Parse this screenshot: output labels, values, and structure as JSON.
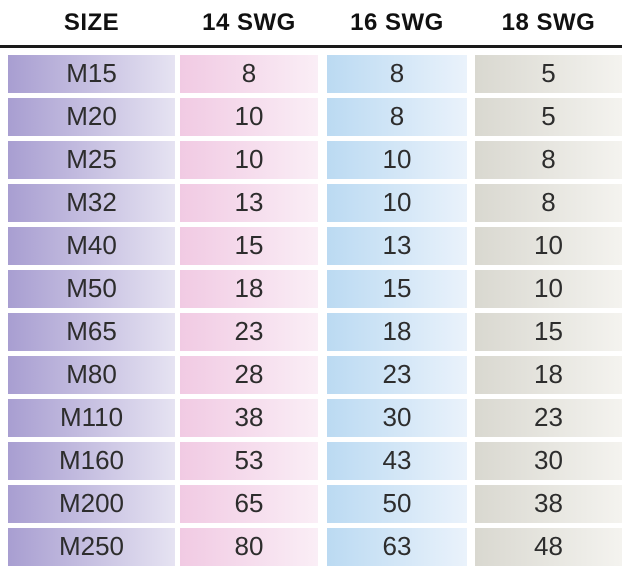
{
  "header": {
    "columns": [
      "SIZE",
      "14 SWG",
      "16 SWG",
      "18 SWG"
    ]
  },
  "rows": [
    {
      "size": "M15",
      "swg14": "8",
      "swg16": "8",
      "swg18": "5"
    },
    {
      "size": "M20",
      "swg14": "10",
      "swg16": "8",
      "swg18": "5"
    },
    {
      "size": "M25",
      "swg14": "10",
      "swg16": "10",
      "swg18": "8"
    },
    {
      "size": "M32",
      "swg14": "13",
      "swg16": "10",
      "swg18": "8"
    },
    {
      "size": "M40",
      "swg14": "15",
      "swg16": "13",
      "swg18": "10"
    },
    {
      "size": "M50",
      "swg14": "18",
      "swg16": "15",
      "swg18": "10"
    },
    {
      "size": "M65",
      "swg14": "23",
      "swg16": "18",
      "swg18": "15"
    },
    {
      "size": "M80",
      "swg14": "28",
      "swg16": "23",
      "swg18": "18"
    },
    {
      "size": "M110",
      "swg14": "38",
      "swg16": "30",
      "swg18": "23"
    },
    {
      "size": "M160",
      "swg14": "53",
      "swg16": "43",
      "swg18": "30"
    },
    {
      "size": "M200",
      "swg14": "65",
      "swg16": "50",
      "swg18": "38"
    },
    {
      "size": "M250",
      "swg14": "80",
      "swg16": "63",
      "swg18": "48"
    }
  ],
  "colors": {
    "purple_start": "#a89ed1",
    "purple_end": "#e6e3f2",
    "pink_start": "#f1cae3",
    "pink_end": "#faeef6",
    "blue_start": "#bbdaf2",
    "blue_end": "#eaf2fb",
    "gray_start": "#d9d8d0",
    "gray_end": "#f4f3ef",
    "rule": "#1a1a1a",
    "header_text": "#111111",
    "cell_text": "#2d2d2d",
    "background": "#ffffff"
  },
  "chart_data": {
    "type": "table",
    "title": "",
    "columns": [
      "SIZE",
      "14 SWG",
      "16 SWG",
      "18 SWG"
    ],
    "categories": [
      "M15",
      "M20",
      "M25",
      "M32",
      "M40",
      "M50",
      "M65",
      "M80",
      "M110",
      "M160",
      "M200",
      "M250"
    ],
    "series": [
      {
        "name": "14 SWG",
        "values": [
          8,
          10,
          10,
          13,
          15,
          18,
          23,
          28,
          38,
          53,
          65,
          80
        ]
      },
      {
        "name": "16 SWG",
        "values": [
          8,
          8,
          10,
          10,
          13,
          15,
          18,
          23,
          30,
          43,
          50,
          63
        ]
      },
      {
        "name": "18 SWG",
        "values": [
          5,
          5,
          8,
          8,
          10,
          10,
          15,
          18,
          23,
          30,
          38,
          48
        ]
      }
    ]
  }
}
